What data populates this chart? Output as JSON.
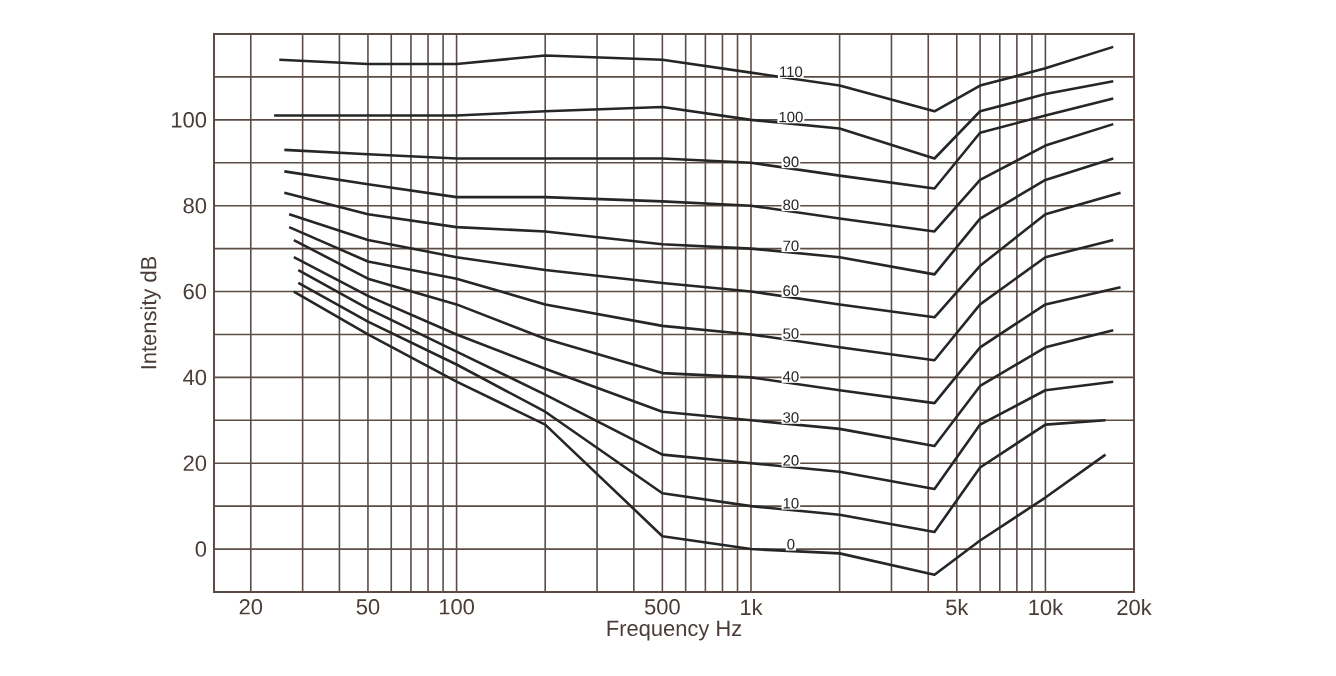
{
  "chart_data": {
    "type": "line",
    "xlabel": "Frequency Hz",
    "ylabel": "Intensity dB",
    "log": "x",
    "grid": true,
    "marker": "none",
    "line_style": "solid",
    "xlim": [
      15,
      20000
    ],
    "ylim": [
      -10,
      120
    ],
    "xticks": [
      20,
      {
        "value": 30,
        "label": null
      },
      {
        "value": 40,
        "label": null
      },
      50,
      {
        "value": 60,
        "label": null
      },
      {
        "value": 70,
        "label": null
      },
      {
        "value": 80,
        "label": null
      },
      {
        "value": 90,
        "label": null
      },
      100,
      {
        "value": 200,
        "label": null
      },
      {
        "value": 300,
        "label": null
      },
      {
        "value": 400,
        "label": null
      },
      500,
      {
        "value": 600,
        "label": null
      },
      {
        "value": 700,
        "label": null
      },
      {
        "value": 800,
        "label": null
      },
      {
        "value": 900,
        "label": null
      },
      {
        "value": 1000,
        "label": "1k"
      },
      {
        "value": 2000,
        "label": null
      },
      {
        "value": 3000,
        "label": null
      },
      {
        "value": 4000,
        "label": null
      },
      {
        "value": 5000,
        "label": "5k"
      },
      {
        "value": 6000,
        "label": null
      },
      {
        "value": 7000,
        "label": null
      },
      {
        "value": 8000,
        "label": null
      },
      {
        "value": 9000,
        "label": null
      },
      {
        "value": 10000,
        "label": "10k"
      },
      {
        "value": 20000,
        "label": "20k"
      }
    ],
    "yticks": [
      {
        "value": -10,
        "label": null
      },
      0,
      {
        "value": 10,
        "label": null
      },
      20,
      {
        "value": 30,
        "label": null
      },
      40,
      {
        "value": 50,
        "label": null
      },
      60,
      {
        "value": 70,
        "label": null
      },
      80,
      {
        "value": 90,
        "label": null
      },
      100,
      {
        "value": 110,
        "label": null
      },
      {
        "value": 120,
        "label": null
      }
    ],
    "series": [
      {
        "name": "110",
        "color": "#262626",
        "x": [
          25,
          50,
          100,
          200,
          500,
          1000,
          2000,
          4200,
          6000,
          10000,
          17000
        ],
        "values": [
          114,
          113,
          113,
          115,
          114,
          111,
          108,
          102,
          108,
          112,
          117
        ]
      },
      {
        "name": "100",
        "color": "#262626",
        "x": [
          24,
          50,
          100,
          200,
          500,
          1000,
          2000,
          4200,
          6000,
          10000,
          17000
        ],
        "values": [
          101,
          101,
          101,
          102,
          103,
          100,
          98,
          91,
          102,
          106,
          109
        ]
      },
      {
        "name": "90",
        "color": "#262626",
        "x": [
          26,
          50,
          100,
          200,
          500,
          1000,
          2000,
          4200,
          6000,
          10000,
          17000
        ],
        "values": [
          93,
          92,
          91,
          91,
          91,
          90,
          87,
          84,
          97,
          101,
          105
        ]
      },
      {
        "name": "80",
        "color": "#262626",
        "x": [
          26,
          50,
          100,
          200,
          500,
          1000,
          2000,
          4200,
          6000,
          10000,
          17000
        ],
        "values": [
          88,
          85,
          82,
          82,
          81,
          80,
          77,
          74,
          86,
          94,
          99
        ]
      },
      {
        "name": "70",
        "color": "#262626",
        "x": [
          26,
          50,
          100,
          200,
          500,
          1000,
          2000,
          4200,
          6000,
          10000,
          17000
        ],
        "values": [
          83,
          78,
          75,
          74,
          71,
          70,
          68,
          64,
          77,
          86,
          91
        ]
      },
      {
        "name": "60",
        "color": "#262626",
        "x": [
          27,
          50,
          100,
          200,
          500,
          1000,
          2000,
          4200,
          6000,
          10000,
          18000
        ],
        "values": [
          78,
          72,
          68,
          65,
          62,
          60,
          57,
          54,
          66,
          78,
          83
        ]
      },
      {
        "name": "50",
        "color": "#262626",
        "x": [
          27,
          50,
          100,
          200,
          500,
          1000,
          2000,
          4200,
          6000,
          10000,
          17000
        ],
        "values": [
          75,
          67,
          63,
          57,
          52,
          50,
          47,
          44,
          57,
          68,
          72
        ]
      },
      {
        "name": "40",
        "color": "#262626",
        "x": [
          28,
          50,
          100,
          200,
          500,
          1000,
          2000,
          4200,
          6000,
          10000,
          18000
        ],
        "values": [
          72,
          63,
          57,
          49,
          41,
          40,
          37,
          34,
          47,
          57,
          61
        ]
      },
      {
        "name": "30",
        "color": "#262626",
        "x": [
          28,
          50,
          100,
          200,
          500,
          1000,
          2000,
          4200,
          6000,
          10000,
          17000
        ],
        "values": [
          68,
          59,
          50,
          42,
          32,
          30,
          28,
          24,
          38,
          47,
          51
        ]
      },
      {
        "name": "20",
        "color": "#262626",
        "x": [
          29,
          50,
          100,
          200,
          500,
          1000,
          2000,
          4200,
          6000,
          10000,
          17000
        ],
        "values": [
          65,
          56,
          46,
          36,
          22,
          20,
          18,
          14,
          29,
          37,
          39
        ]
      },
      {
        "name": "10",
        "color": "#262626",
        "x": [
          29,
          50,
          100,
          200,
          500,
          1000,
          2000,
          4200,
          6000,
          10000,
          16000
        ],
        "values": [
          62,
          53,
          43,
          32,
          13,
          10,
          8,
          4,
          19,
          29,
          30
        ]
      },
      {
        "name": "0",
        "color": "#262626",
        "x": [
          28,
          50,
          100,
          200,
          500,
          1000,
          2000,
          4200,
          6000,
          10000,
          16000
        ],
        "values": [
          60,
          50,
          39,
          29,
          3,
          0,
          -1,
          -6,
          2,
          12,
          22
        ]
      }
    ]
  }
}
